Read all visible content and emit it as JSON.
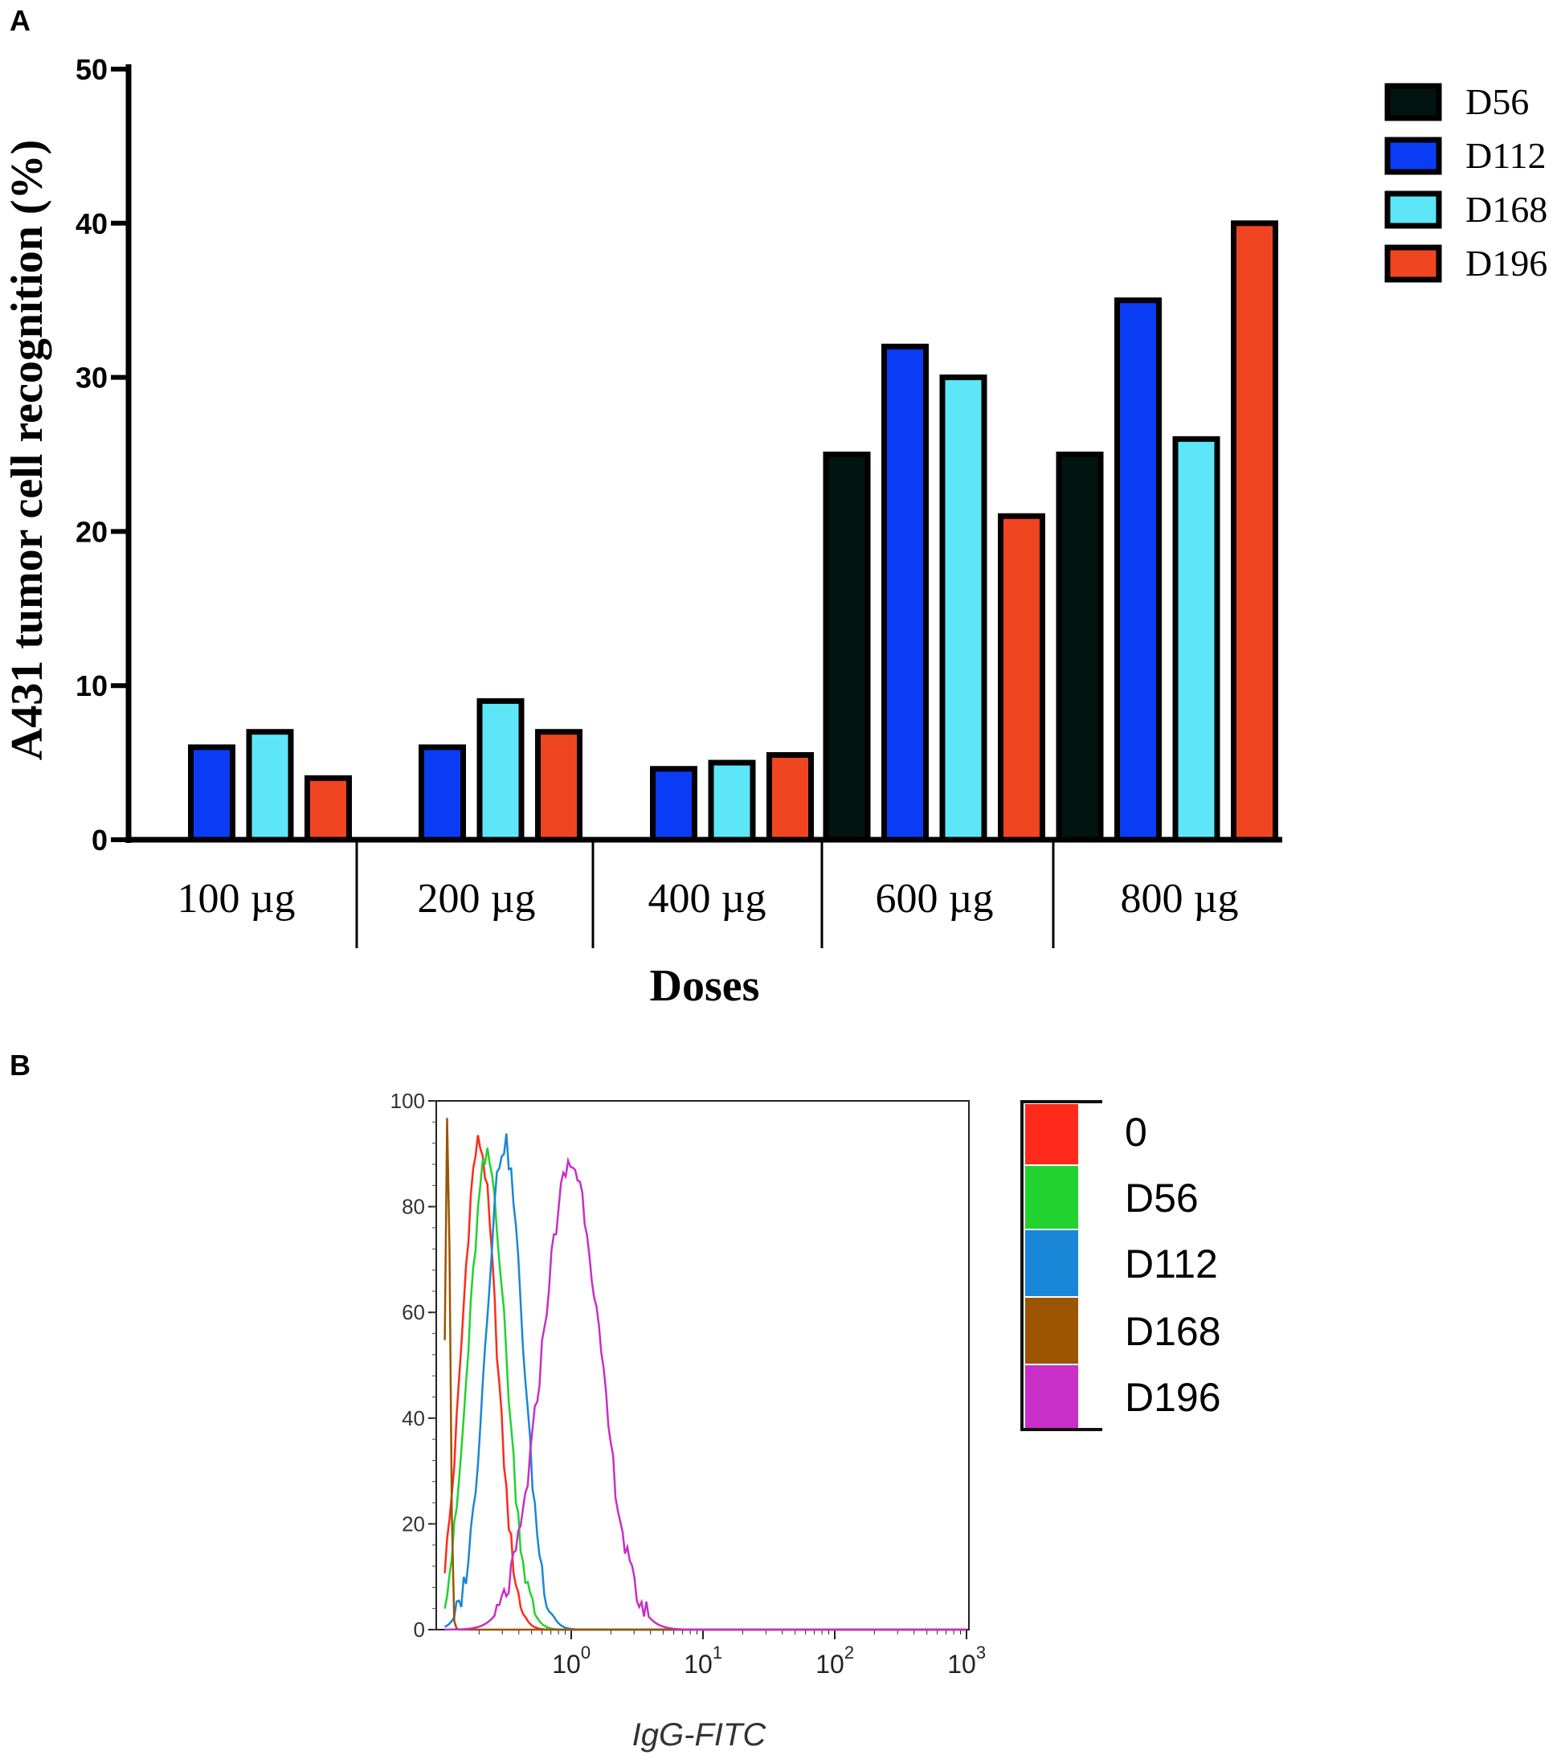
{
  "chart_data": [
    {
      "panel": "A",
      "type": "bar",
      "title": "",
      "xlabel": "Doses",
      "ylabel": "A431 tumor cell recognition (%)",
      "ylim": [
        0,
        50
      ],
      "yticks": [
        "0",
        "10",
        "20",
        "30",
        "40",
        "50"
      ],
      "categories": [
        "100 µg",
        "200 µg",
        "400 µg",
        "600 µg",
        "800 µg"
      ],
      "series": [
        {
          "name": "D56",
          "color": "#021410",
          "values": [
            0,
            0,
            0,
            25,
            25
          ]
        },
        {
          "name": "D112",
          "color": "#0a3cf5",
          "values": [
            6,
            6,
            4.6,
            32,
            35
          ]
        },
        {
          "name": "D168",
          "color": "#5de6f7",
          "values": [
            7,
            9,
            5,
            30,
            26
          ]
        },
        {
          "name": "D196",
          "color": "#ef4521",
          "values": [
            4,
            7,
            5.5,
            21,
            40
          ]
        }
      ],
      "legend_position": "top-right",
      "grid": false
    },
    {
      "panel": "B",
      "type": "line",
      "title": "",
      "xlabel": "IgG-FITC",
      "ylabel": "",
      "xscale": "log",
      "xlim": [
        0.1,
        1000
      ],
      "ylim": [
        0,
        100
      ],
      "yticks": [
        "0",
        "20",
        "40",
        "60",
        "80",
        "100"
      ],
      "xticks": [
        {
          "base": "10",
          "exp": "0"
        },
        {
          "base": "10",
          "exp": "1"
        },
        {
          "base": "10",
          "exp": "2"
        },
        {
          "base": "10",
          "exp": "3"
        }
      ],
      "series": [
        {
          "name": "0",
          "color": "#ff2a1a",
          "peak_x": 0.2,
          "peak_y": 92,
          "width": 0.13
        },
        {
          "name": "D56",
          "color": "#22d22e",
          "peak_x": 0.23,
          "peak_y": 89,
          "width": 0.14
        },
        {
          "name": "D112",
          "color": "#1a86d8",
          "peak_x": 0.31,
          "peak_y": 92,
          "width": 0.14
        },
        {
          "name": "D168",
          "color": "#9c5400",
          "peak_x": 0.115,
          "peak_y": 96,
          "width": 0.02
        },
        {
          "name": "D196",
          "color": "#c82fc6",
          "peak_x": 1.0,
          "peak_y": 88,
          "width": 0.22
        }
      ],
      "legend_position": "right",
      "grid": false
    }
  ],
  "panel_labels": {
    "a": "A",
    "b": "B"
  }
}
